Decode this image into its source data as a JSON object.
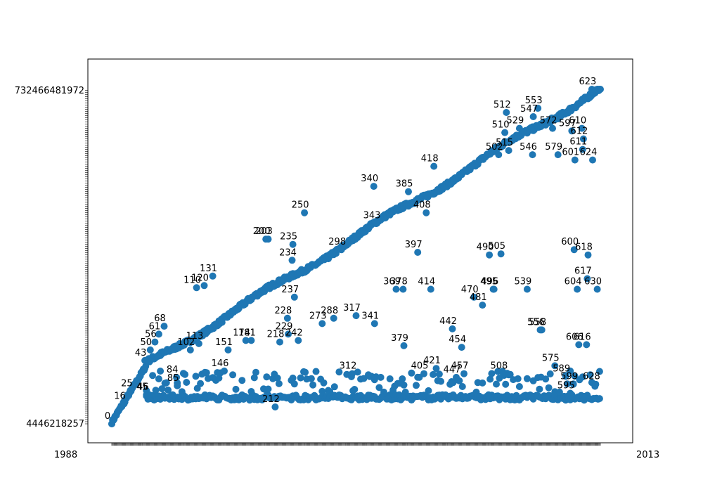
{
  "chart_data": {
    "type": "scatter",
    "title": "",
    "xlabel": "",
    "ylabel": "",
    "grid": false,
    "legend": "none",
    "marker_color": "#1f77b4",
    "x_tick_labels_visible": [
      "1988",
      "2013"
    ],
    "y_tick_labels_visible": [
      "732466481972",
      "4446218257"
    ],
    "xlim": [
      0,
      634
    ],
    "ylim": [
      0,
      634
    ],
    "point_labels_visible": [
      "0",
      "16",
      "25",
      "43",
      "45",
      "46",
      "50",
      "56",
      "61",
      "68",
      "84",
      "85",
      "102",
      "110",
      "113",
      "120",
      "131",
      "146",
      "151",
      "174",
      "181",
      "200",
      "203",
      "212",
      "218",
      "228",
      "229",
      "234",
      "235",
      "237",
      "242",
      "250",
      "273",
      "288",
      "298",
      "312",
      "317",
      "340",
      "341",
      "343",
      "369",
      "378",
      "379",
      "385",
      "397",
      "405",
      "408",
      "414",
      "418",
      "421",
      "442",
      "447",
      "454",
      "457",
      "470",
      "481",
      "490",
      "495",
      "496",
      "502",
      "505",
      "508",
      "510",
      "512",
      "515",
      "529",
      "539",
      "546",
      "547",
      "553",
      "556",
      "558",
      "572",
      "575",
      "579",
      "589",
      "595",
      "597",
      "599",
      "600",
      "601",
      "604",
      "606",
      "610",
      "611",
      "612",
      "616",
      "617",
      "618",
      "623",
      "624",
      "628",
      "630"
    ],
    "highlighted_points": [
      {
        "label": "0",
        "x": 0,
        "y": 0
      },
      {
        "label": "16",
        "x": 16,
        "y": 38
      },
      {
        "label": "25",
        "x": 25,
        "y": 62
      },
      {
        "label": "43",
        "x": 43,
        "y": 120
      },
      {
        "label": "45",
        "x": 45,
        "y": 55
      },
      {
        "label": "46",
        "x": 46,
        "y": 55
      },
      {
        "label": "50",
        "x": 50,
        "y": 140
      },
      {
        "label": "56",
        "x": 56,
        "y": 155
      },
      {
        "label": "61",
        "x": 61,
        "y": 170
      },
      {
        "label": "68",
        "x": 68,
        "y": 185
      },
      {
        "label": "84",
        "x": 84,
        "y": 88
      },
      {
        "label": "85",
        "x": 85,
        "y": 72
      },
      {
        "label": "102",
        "x": 102,
        "y": 140
      },
      {
        "label": "110",
        "x": 110,
        "y": 258
      },
      {
        "label": "113",
        "x": 113,
        "y": 152
      },
      {
        "label": "120",
        "x": 120,
        "y": 262
      },
      {
        "label": "131",
        "x": 131,
        "y": 280
      },
      {
        "label": "146",
        "x": 146,
        "y": 100
      },
      {
        "label": "151",
        "x": 151,
        "y": 140
      },
      {
        "label": "174",
        "x": 174,
        "y": 158
      },
      {
        "label": "181",
        "x": 181,
        "y": 158
      },
      {
        "label": "200",
        "x": 200,
        "y": 350
      },
      {
        "label": "203",
        "x": 203,
        "y": 350
      },
      {
        "label": "212",
        "x": 212,
        "y": 32
      },
      {
        "label": "218",
        "x": 218,
        "y": 155
      },
      {
        "label": "228",
        "x": 228,
        "y": 200
      },
      {
        "label": "229",
        "x": 229,
        "y": 170
      },
      {
        "label": "234",
        "x": 234,
        "y": 310
      },
      {
        "label": "235",
        "x": 235,
        "y": 340
      },
      {
        "label": "237",
        "x": 237,
        "y": 240
      },
      {
        "label": "242",
        "x": 242,
        "y": 158
      },
      {
        "label": "250",
        "x": 250,
        "y": 400
      },
      {
        "label": "273",
        "x": 273,
        "y": 190
      },
      {
        "label": "288",
        "x": 288,
        "y": 200
      },
      {
        "label": "298",
        "x": 298,
        "y": 330
      },
      {
        "label": "312",
        "x": 312,
        "y": 95
      },
      {
        "label": "317",
        "x": 317,
        "y": 205
      },
      {
        "label": "340",
        "x": 340,
        "y": 450
      },
      {
        "label": "341",
        "x": 341,
        "y": 190
      },
      {
        "label": "343",
        "x": 343,
        "y": 380
      },
      {
        "label": "369",
        "x": 369,
        "y": 255
      },
      {
        "label": "378",
        "x": 378,
        "y": 255
      },
      {
        "label": "379",
        "x": 379,
        "y": 148
      },
      {
        "label": "385",
        "x": 385,
        "y": 440
      },
      {
        "label": "397",
        "x": 397,
        "y": 325
      },
      {
        "label": "405",
        "x": 405,
        "y": 95
      },
      {
        "label": "408",
        "x": 408,
        "y": 400
      },
      {
        "label": "414",
        "x": 414,
        "y": 255
      },
      {
        "label": "418",
        "x": 418,
        "y": 488
      },
      {
        "label": "421",
        "x": 421,
        "y": 105
      },
      {
        "label": "442",
        "x": 442,
        "y": 180
      },
      {
        "label": "447",
        "x": 447,
        "y": 88
      },
      {
        "label": "454",
        "x": 454,
        "y": 145
      },
      {
        "label": "457",
        "x": 457,
        "y": 95
      },
      {
        "label": "470",
        "x": 470,
        "y": 240
      },
      {
        "label": "481",
        "x": 481,
        "y": 225
      },
      {
        "label": "490",
        "x": 490,
        "y": 320
      },
      {
        "label": "495",
        "x": 495,
        "y": 255
      },
      {
        "label": "496",
        "x": 496,
        "y": 255
      },
      {
        "label": "502",
        "x": 502,
        "y": 510
      },
      {
        "label": "505",
        "x": 505,
        "y": 322
      },
      {
        "label": "508",
        "x": 508,
        "y": 95
      },
      {
        "label": "510",
        "x": 510,
        "y": 552
      },
      {
        "label": "512",
        "x": 512,
        "y": 590
      },
      {
        "label": "515",
        "x": 515,
        "y": 518
      },
      {
        "label": "529",
        "x": 529,
        "y": 560
      },
      {
        "label": "539",
        "x": 539,
        "y": 255
      },
      {
        "label": "546",
        "x": 546,
        "y": 510
      },
      {
        "label": "547",
        "x": 547,
        "y": 582
      },
      {
        "label": "553",
        "x": 553,
        "y": 598
      },
      {
        "label": "556",
        "x": 556,
        "y": 178
      },
      {
        "label": "558",
        "x": 558,
        "y": 178
      },
      {
        "label": "572",
        "x": 572,
        "y": 560
      },
      {
        "label": "575",
        "x": 575,
        "y": 110
      },
      {
        "label": "579",
        "x": 579,
        "y": 510
      },
      {
        "label": "589",
        "x": 589,
        "y": 90
      },
      {
        "label": "595",
        "x": 595,
        "y": 58
      },
      {
        "label": "597",
        "x": 597,
        "y": 555
      },
      {
        "label": "599",
        "x": 599,
        "y": 75
      },
      {
        "label": "600",
        "x": 600,
        "y": 330
      },
      {
        "label": "601",
        "x": 601,
        "y": 500
      },
      {
        "label": "604",
        "x": 604,
        "y": 255
      },
      {
        "label": "606",
        "x": 606,
        "y": 150
      },
      {
        "label": "610",
        "x": 610,
        "y": 560
      },
      {
        "label": "611",
        "x": 611,
        "y": 520
      },
      {
        "label": "612",
        "x": 612,
        "y": 540
      },
      {
        "label": "616",
        "x": 616,
        "y": 150
      },
      {
        "label": "617",
        "x": 617,
        "y": 275
      },
      {
        "label": "618",
        "x": 618,
        "y": 320
      },
      {
        "label": "623",
        "x": 623,
        "y": 634
      },
      {
        "label": "624",
        "x": 624,
        "y": 500
      },
      {
        "label": "628",
        "x": 628,
        "y": 75
      },
      {
        "label": "630",
        "x": 630,
        "y": 255
      }
    ]
  }
}
